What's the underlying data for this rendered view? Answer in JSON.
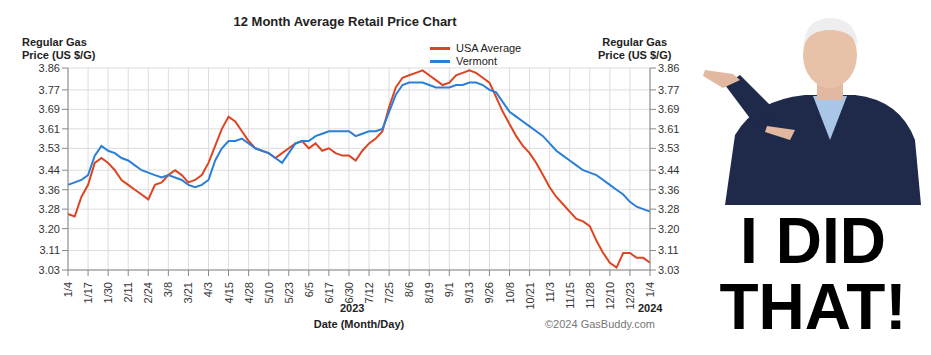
{
  "chart_data": {
    "type": "line",
    "title": "12 Month Average Retail Price Chart",
    "xlabel": "Date (Month/Day)",
    "ylabel": "Regular Gas\nPrice (US $/G)",
    "y2label": "Regular Gas\nPrice (US $/G)",
    "categories": [
      "1/4",
      null,
      null,
      "1/17",
      null,
      null,
      "1/30",
      null,
      null,
      "2/11",
      null,
      null,
      "2/24",
      null,
      null,
      "3/8",
      null,
      null,
      "3/21",
      null,
      null,
      "4/3",
      null,
      null,
      "4/15",
      null,
      null,
      "4/28",
      null,
      null,
      "5/10",
      null,
      null,
      "5/23",
      null,
      null,
      "6/5",
      null,
      null,
      "6/17",
      null,
      null,
      "6/30",
      null,
      null,
      "7/12",
      null,
      null,
      "7/25",
      null,
      null,
      "8/6",
      null,
      null,
      "8/19",
      null,
      null,
      "9/1",
      null,
      null,
      "9/13",
      null,
      null,
      "9/26",
      null,
      null,
      "10/8",
      null,
      null,
      "10/21",
      null,
      null,
      "11/3",
      null,
      null,
      "11/15",
      null,
      null,
      "11/28",
      null,
      null,
      "12/10",
      null,
      null,
      "12/23",
      null,
      null,
      "1/4"
    ],
    "series": [
      {
        "name": "USA Average",
        "color": "#dd4422",
        "values": [
          3.26,
          3.25,
          3.33,
          3.38,
          3.47,
          3.49,
          3.47,
          3.44,
          3.4,
          3.38,
          3.36,
          3.34,
          3.32,
          3.38,
          3.39,
          3.42,
          3.44,
          3.42,
          3.39,
          3.4,
          3.42,
          3.47,
          3.54,
          3.61,
          3.66,
          3.64,
          3.6,
          3.56,
          3.53,
          3.52,
          3.51,
          3.49,
          3.51,
          3.53,
          3.55,
          3.56,
          3.53,
          3.55,
          3.52,
          3.53,
          3.51,
          3.5,
          3.5,
          3.48,
          3.52,
          3.55,
          3.57,
          3.6,
          3.7,
          3.78,
          3.82,
          3.83,
          3.84,
          3.85,
          3.83,
          3.81,
          3.79,
          3.8,
          3.83,
          3.84,
          3.85,
          3.84,
          3.82,
          3.8,
          3.74,
          3.68,
          3.63,
          3.58,
          3.54,
          3.51,
          3.47,
          3.42,
          3.37,
          3.33,
          3.3,
          3.27,
          3.24,
          3.23,
          3.21,
          3.15,
          3.1,
          3.06,
          3.04,
          3.1,
          3.1,
          3.08,
          3.08,
          3.06
        ]
      },
      {
        "name": "Vermont",
        "color": "#2a7fd8",
        "values": [
          3.38,
          3.39,
          3.4,
          3.42,
          3.5,
          3.54,
          3.52,
          3.51,
          3.49,
          3.48,
          3.46,
          3.44,
          3.43,
          3.42,
          3.41,
          3.42,
          3.41,
          3.4,
          3.38,
          3.37,
          3.38,
          3.4,
          3.48,
          3.53,
          3.56,
          3.56,
          3.57,
          3.55,
          3.53,
          3.52,
          3.51,
          3.49,
          3.47,
          3.51,
          3.55,
          3.56,
          3.56,
          3.58,
          3.59,
          3.6,
          3.6,
          3.6,
          3.6,
          3.58,
          3.59,
          3.6,
          3.6,
          3.61,
          3.68,
          3.75,
          3.79,
          3.8,
          3.8,
          3.8,
          3.79,
          3.78,
          3.78,
          3.78,
          3.79,
          3.79,
          3.8,
          3.8,
          3.79,
          3.77,
          3.76,
          3.72,
          3.68,
          3.66,
          3.64,
          3.62,
          3.6,
          3.58,
          3.55,
          3.52,
          3.5,
          3.48,
          3.46,
          3.44,
          3.43,
          3.42,
          3.4,
          3.38,
          3.36,
          3.34,
          3.31,
          3.29,
          3.28,
          3.27
        ]
      }
    ],
    "ylim": [
      3.03,
      3.86
    ],
    "yticks": [
      3.03,
      3.11,
      {
        "value": 3.2,
        "label": "3.20"
      },
      3.28,
      3.36,
      3.44,
      3.53,
      3.61,
      3.69,
      3.77,
      3.86
    ],
    "y2lim": [
      3.03,
      3.86
    ],
    "y2ticks": [
      3.03,
      3.11,
      {
        "value": 3.2,
        "label": "3.20"
      },
      3.28,
      3.36,
      3.44,
      3.53,
      3.61,
      3.69,
      3.77,
      3.86
    ],
    "grid": true,
    "legend": "top",
    "annotations": [
      "2023",
      "2024",
      "©2024 GasBuddy.com"
    ]
  },
  "sticker": {
    "text": [
      "I DID",
      "THAT!"
    ]
  }
}
